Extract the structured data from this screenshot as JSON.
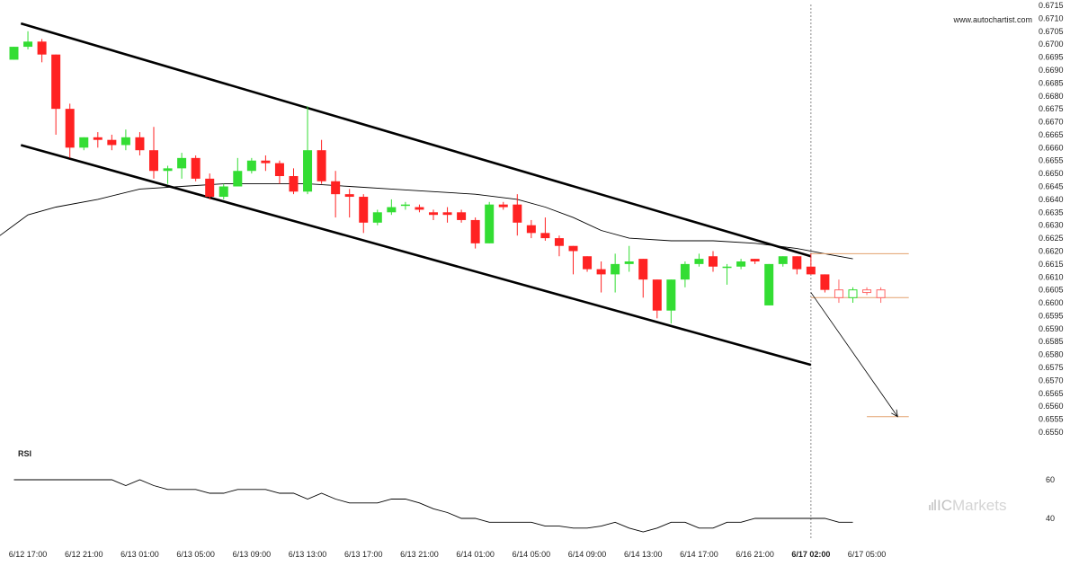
{
  "watermark": "www.autochartist.com",
  "brand": {
    "prefix": "IC",
    "name": "Markets"
  },
  "colors": {
    "up": "#33dd33",
    "down": "#ff2222",
    "projected": "#ff6666",
    "channel": "#000000",
    "ma": "#000000",
    "level": "#e3a06b",
    "rsi": "#000000"
  },
  "chart_data": {
    "type": "candlestick",
    "y_axis": {
      "min": 0.655,
      "max": 0.6715,
      "step": 0.0005,
      "tick_labels": [
        "0.6550",
        "0.6555",
        "0.6560",
        "0.6565",
        "0.6570",
        "0.6575",
        "0.6580",
        "0.6585",
        "0.6590",
        "0.6595",
        "0.6600",
        "0.6605",
        "0.6610",
        "0.6615",
        "0.6620",
        "0.6625",
        "0.6630",
        "0.6635",
        "0.6640",
        "0.6645",
        "0.6650",
        "0.6655",
        "0.6660",
        "0.6665",
        "0.6670",
        "0.6675",
        "0.6680",
        "0.6685",
        "0.6690",
        "0.6695",
        "0.6700",
        "0.6705",
        "0.6710",
        "0.6715"
      ]
    },
    "x_axis": {
      "labels": [
        {
          "label": "6/12 17:00",
          "bar": 1
        },
        {
          "label": "6/12 21:00",
          "bar": 5
        },
        {
          "label": "6/13 01:00",
          "bar": 9
        },
        {
          "label": "6/13 05:00",
          "bar": 13
        },
        {
          "label": "6/13 09:00",
          "bar": 17
        },
        {
          "label": "6/13 13:00",
          "bar": 21
        },
        {
          "label": "6/13 17:00",
          "bar": 25
        },
        {
          "label": "6/13 21:00",
          "bar": 29
        },
        {
          "label": "6/14 01:00",
          "bar": 33
        },
        {
          "label": "6/14 05:00",
          "bar": 37
        },
        {
          "label": "6/14 09:00",
          "bar": 41
        },
        {
          "label": "6/14 13:00",
          "bar": 45
        },
        {
          "label": "6/14 17:00",
          "bar": 49
        },
        {
          "label": "6/16 21:00",
          "bar": 53
        },
        {
          "label": "6/17 02:00",
          "bar": 57,
          "bold": true
        },
        {
          "label": "6/17 05:00",
          "bar": 61
        }
      ]
    },
    "candles": [
      {
        "o": 0.6694,
        "h": 0.6699,
        "l": 0.6694,
        "c": 0.6699
      },
      {
        "o": 0.6699,
        "h": 0.6705,
        "l": 0.6698,
        "c": 0.6701
      },
      {
        "o": 0.6701,
        "h": 0.6702,
        "l": 0.6693,
        "c": 0.6696
      },
      {
        "o": 0.6696,
        "h": 0.6696,
        "l": 0.6665,
        "c": 0.6675
      },
      {
        "o": 0.6675,
        "h": 0.6677,
        "l": 0.6656,
        "c": 0.666
      },
      {
        "o": 0.666,
        "h": 0.6664,
        "l": 0.6659,
        "c": 0.6664
      },
      {
        "o": 0.6664,
        "h": 0.6666,
        "l": 0.666,
        "c": 0.6663
      },
      {
        "o": 0.6663,
        "h": 0.6665,
        "l": 0.6659,
        "c": 0.6661
      },
      {
        "o": 0.6661,
        "h": 0.6667,
        "l": 0.6659,
        "c": 0.6664
      },
      {
        "o": 0.6664,
        "h": 0.6666,
        "l": 0.6657,
        "c": 0.6659
      },
      {
        "o": 0.6659,
        "h": 0.6668,
        "l": 0.6648,
        "c": 0.6651
      },
      {
        "o": 0.6651,
        "h": 0.6653,
        "l": 0.6646,
        "c": 0.6652
      },
      {
        "o": 0.6652,
        "h": 0.6658,
        "l": 0.6648,
        "c": 0.6656
      },
      {
        "o": 0.6656,
        "h": 0.6657,
        "l": 0.6647,
        "c": 0.6648
      },
      {
        "o": 0.6648,
        "h": 0.665,
        "l": 0.664,
        "c": 0.6641
      },
      {
        "o": 0.6641,
        "h": 0.6646,
        "l": 0.664,
        "c": 0.6645
      },
      {
        "o": 0.6645,
        "h": 0.6656,
        "l": 0.6645,
        "c": 0.6651
      },
      {
        "o": 0.6651,
        "h": 0.6656,
        "l": 0.665,
        "c": 0.6655
      },
      {
        "o": 0.6655,
        "h": 0.6657,
        "l": 0.6651,
        "c": 0.6654
      },
      {
        "o": 0.6654,
        "h": 0.6655,
        "l": 0.6646,
        "c": 0.6649
      },
      {
        "o": 0.6649,
        "h": 0.6652,
        "l": 0.6642,
        "c": 0.6643
      },
      {
        "o": 0.6643,
        "h": 0.6676,
        "l": 0.6642,
        "c": 0.6659
      },
      {
        "o": 0.6659,
        "h": 0.6663,
        "l": 0.6646,
        "c": 0.6647
      },
      {
        "o": 0.6647,
        "h": 0.6651,
        "l": 0.6633,
        "c": 0.6642
      },
      {
        "o": 0.6642,
        "h": 0.6644,
        "l": 0.6633,
        "c": 0.6641
      },
      {
        "o": 0.6641,
        "h": 0.6642,
        "l": 0.6627,
        "c": 0.6631
      },
      {
        "o": 0.6631,
        "h": 0.6636,
        "l": 0.663,
        "c": 0.6635
      },
      {
        "o": 0.6635,
        "h": 0.664,
        "l": 0.6634,
        "c": 0.6637
      },
      {
        "o": 0.6638,
        "h": 0.6639,
        "l": 0.6636,
        "c": 0.6638
      },
      {
        "o": 0.6637,
        "h": 0.6638,
        "l": 0.6635,
        "c": 0.6636
      },
      {
        "o": 0.6635,
        "h": 0.6636,
        "l": 0.6632,
        "c": 0.6634
      },
      {
        "o": 0.6635,
        "h": 0.6637,
        "l": 0.6631,
        "c": 0.6634
      },
      {
        "o": 0.6635,
        "h": 0.6636,
        "l": 0.6631,
        "c": 0.6632
      },
      {
        "o": 0.6632,
        "h": 0.6633,
        "l": 0.6621,
        "c": 0.6623
      },
      {
        "o": 0.6623,
        "h": 0.6639,
        "l": 0.6623,
        "c": 0.6638
      },
      {
        "o": 0.6638,
        "h": 0.6639,
        "l": 0.6636,
        "c": 0.6637
      },
      {
        "o": 0.6638,
        "h": 0.6642,
        "l": 0.6626,
        "c": 0.6631
      },
      {
        "o": 0.663,
        "h": 0.6632,
        "l": 0.6625,
        "c": 0.6627
      },
      {
        "o": 0.6627,
        "h": 0.6633,
        "l": 0.6624,
        "c": 0.6625
      },
      {
        "o": 0.6625,
        "h": 0.6626,
        "l": 0.6618,
        "c": 0.6622
      },
      {
        "o": 0.6622,
        "h": 0.6622,
        "l": 0.6611,
        "c": 0.662
      },
      {
        "o": 0.6618,
        "h": 0.6618,
        "l": 0.6612,
        "c": 0.6613
      },
      {
        "o": 0.6613,
        "h": 0.6616,
        "l": 0.6604,
        "c": 0.6611
      },
      {
        "o": 0.6611,
        "h": 0.6619,
        "l": 0.6604,
        "c": 0.6615
      },
      {
        "o": 0.6615,
        "h": 0.6622,
        "l": 0.6612,
        "c": 0.6616
      },
      {
        "o": 0.6617,
        "h": 0.6617,
        "l": 0.6602,
        "c": 0.6609
      },
      {
        "o": 0.6609,
        "h": 0.6609,
        "l": 0.6594,
        "c": 0.6597
      },
      {
        "o": 0.6597,
        "h": 0.6609,
        "l": 0.6592,
        "c": 0.6609
      },
      {
        "o": 0.6609,
        "h": 0.6616,
        "l": 0.6606,
        "c": 0.6615
      },
      {
        "o": 0.6615,
        "h": 0.6619,
        "l": 0.6614,
        "c": 0.6617
      },
      {
        "o": 0.6618,
        "h": 0.662,
        "l": 0.6612,
        "c": 0.6614
      },
      {
        "o": 0.6614,
        "h": 0.6615,
        "l": 0.6607,
        "c": 0.6614
      },
      {
        "o": 0.6614,
        "h": 0.6617,
        "l": 0.6613,
        "c": 0.6616
      },
      {
        "o": 0.6617,
        "h": 0.6617,
        "l": 0.6615,
        "c": 0.6616
      },
      {
        "o": 0.6599,
        "h": 0.6615,
        "l": 0.6599,
        "c": 0.6615
      },
      {
        "o": 0.6615,
        "h": 0.6618,
        "l": 0.6614,
        "c": 0.6618
      },
      {
        "o": 0.6618,
        "h": 0.6618,
        "l": 0.6611,
        "c": 0.6613
      },
      {
        "o": 0.6614,
        "h": 0.6619,
        "l": 0.6611,
        "c": 0.6611
      },
      {
        "o": 0.6611,
        "h": 0.6611,
        "l": 0.6604,
        "c": 0.6605
      }
    ],
    "projected_candles": [
      {
        "o": 0.6605,
        "h": 0.6609,
        "l": 0.66,
        "c": 0.6602
      },
      {
        "o": 0.6602,
        "h": 0.6606,
        "l": 0.66,
        "c": 0.6605
      },
      {
        "o": 0.6605,
        "h": 0.6606,
        "l": 0.6603,
        "c": 0.6604
      },
      {
        "o": 0.6605,
        "h": 0.6606,
        "l": 0.66,
        "c": 0.6602
      }
    ],
    "moving_average": [
      {
        "bar": -1,
        "v": 0.6626
      },
      {
        "bar": 1,
        "v": 0.6634
      },
      {
        "bar": 3,
        "v": 0.6637
      },
      {
        "bar": 6,
        "v": 0.664
      },
      {
        "bar": 9,
        "v": 0.6644
      },
      {
        "bar": 12,
        "v": 0.6645
      },
      {
        "bar": 15,
        "v": 0.6646
      },
      {
        "bar": 18,
        "v": 0.6646
      },
      {
        "bar": 21,
        "v": 0.6646
      },
      {
        "bar": 24,
        "v": 0.6645
      },
      {
        "bar": 27,
        "v": 0.6644
      },
      {
        "bar": 30,
        "v": 0.6643
      },
      {
        "bar": 33,
        "v": 0.6642
      },
      {
        "bar": 36,
        "v": 0.664
      },
      {
        "bar": 38,
        "v": 0.6637
      },
      {
        "bar": 40,
        "v": 0.6633
      },
      {
        "bar": 42,
        "v": 0.6628
      },
      {
        "bar": 44,
        "v": 0.6625
      },
      {
        "bar": 47,
        "v": 0.6624
      },
      {
        "bar": 50,
        "v": 0.6624
      },
      {
        "bar": 53,
        "v": 0.6623
      },
      {
        "bar": 56,
        "v": 0.6621
      },
      {
        "bar": 58,
        "v": 0.6619
      },
      {
        "bar": 60,
        "v": 0.6617
      }
    ],
    "channel": {
      "upper": [
        {
          "bar": 0.5,
          "v": 0.6708
        },
        {
          "bar": 57,
          "v": 0.6618
        }
      ],
      "lower": [
        {
          "bar": 0.5,
          "v": 0.6661
        },
        {
          "bar": 57,
          "v": 0.6576
        }
      ]
    },
    "levels": [
      {
        "v": 0.6619,
        "from_bar": 57,
        "to_bar": 64
      },
      {
        "v": 0.6602,
        "from_bar": 57,
        "to_bar": 64
      },
      {
        "v": 0.6556,
        "from_bar": 61,
        "to_bar": 64
      }
    ],
    "forecast_arrow": {
      "from": {
        "bar": 57,
        "v": 0.6604
      },
      "to": {
        "bar": 63.2,
        "v": 0.6556
      }
    },
    "marker_bar": 57,
    "rsi": {
      "title": "RSI",
      "tick_labels": [
        "60",
        "40"
      ],
      "values": [
        60,
        60,
        60,
        60,
        60,
        60,
        60,
        60,
        57,
        60,
        57,
        55,
        55,
        55,
        53,
        53,
        55,
        55,
        55,
        53,
        53,
        50,
        53,
        50,
        48,
        48,
        48,
        50,
        50,
        48,
        45,
        43,
        40,
        40,
        38,
        38,
        38,
        38,
        36,
        36,
        35,
        35,
        36,
        38,
        35,
        33,
        35,
        38,
        38,
        35,
        35,
        38,
        38,
        40,
        40,
        40,
        40,
        40,
        40,
        38,
        38
      ]
    }
  }
}
